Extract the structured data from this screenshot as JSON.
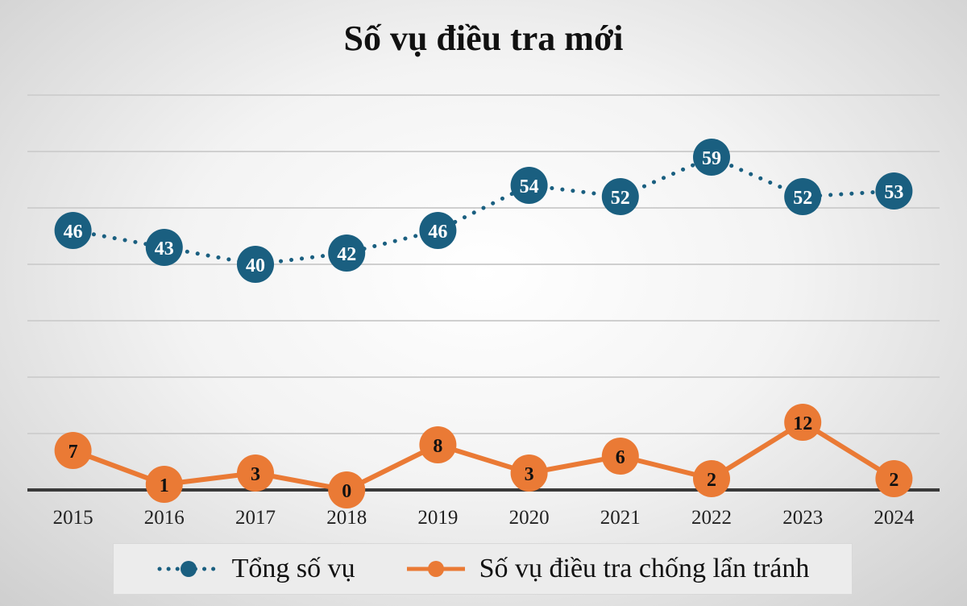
{
  "chart_data": {
    "type": "line",
    "title": "Số vụ điều tra mới",
    "categories": [
      "2015",
      "2016",
      "2017",
      "2018",
      "2019",
      "2020",
      "2021",
      "2022",
      "2023",
      "2024"
    ],
    "series": [
      {
        "name": "Tổng số vụ",
        "values": [
          46,
          43,
          40,
          42,
          46,
          54,
          52,
          59,
          52,
          53
        ],
        "color": "#1a5f80",
        "line_style": "dotted"
      },
      {
        "name": "Số vụ điều tra chống lẩn tránh",
        "values": [
          7,
          1,
          3,
          0,
          8,
          3,
          6,
          2,
          12,
          2
        ],
        "color": "#ea7a35",
        "line_style": "solid"
      }
    ],
    "ylim": [
      0,
      70
    ],
    "grid": true,
    "legend_position": "bottom"
  }
}
